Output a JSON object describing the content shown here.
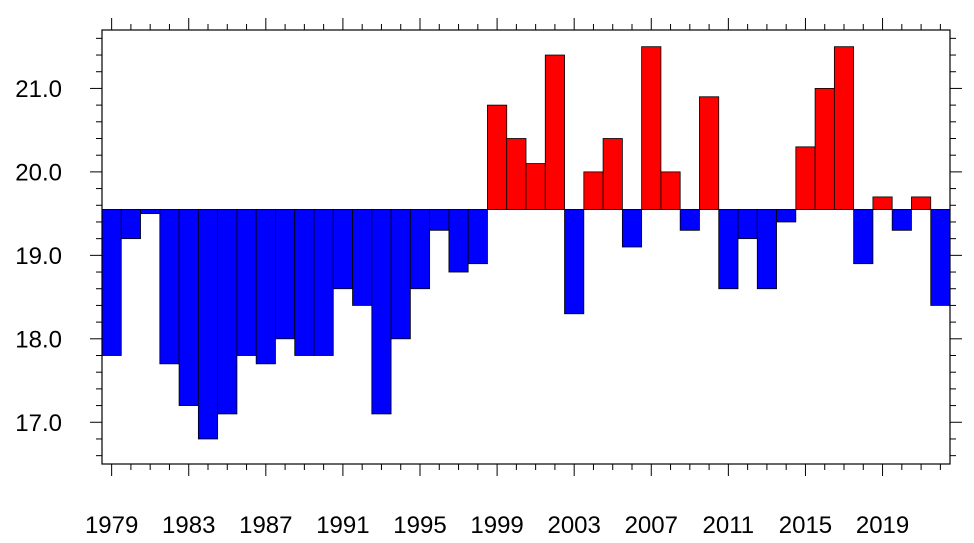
{
  "chart_data": {
    "type": "bar",
    "baseline": 19.55,
    "above_color": "#ff0000",
    "below_color": "#0000ff",
    "x": [
      1979,
      1980,
      1981,
      1982,
      1983,
      1984,
      1985,
      1986,
      1987,
      1988,
      1989,
      1990,
      1991,
      1992,
      1993,
      1994,
      1995,
      1996,
      1997,
      1998,
      1999,
      2000,
      2001,
      2002,
      2003,
      2004,
      2005,
      2006,
      2007,
      2008,
      2009,
      2010,
      2011,
      2012,
      2013,
      2014,
      2015,
      2016,
      2017,
      2018,
      2019,
      2020,
      2021,
      2022
    ],
    "values": [
      17.8,
      19.2,
      19.5,
      17.7,
      17.2,
      16.8,
      17.1,
      17.8,
      17.7,
      18.0,
      17.8,
      17.8,
      18.6,
      18.4,
      17.1,
      18.0,
      18.6,
      19.3,
      18.8,
      18.9,
      20.8,
      20.4,
      20.1,
      21.4,
      18.3,
      20.0,
      20.4,
      19.1,
      21.5,
      20.0,
      19.3,
      20.9,
      18.6,
      19.2,
      18.6,
      19.4,
      20.3,
      21.0,
      21.5,
      18.9,
      19.7,
      19.3,
      19.7,
      18.4
    ],
    "xlim": [
      1978.5,
      2022.5
    ],
    "ylim": [
      16.5,
      21.7
    ],
    "x_tick_labels": [
      "1979",
      "1983",
      "1987",
      "1991",
      "1995",
      "1999",
      "2003",
      "2007",
      "2011",
      "2015",
      "2019"
    ],
    "y_tick_labels": [
      "17.0",
      "18.0",
      "19.0",
      "20.0",
      "21.0"
    ],
    "title": "",
    "xlabel": "",
    "ylabel": "",
    "grid": false,
    "legend": "none"
  }
}
